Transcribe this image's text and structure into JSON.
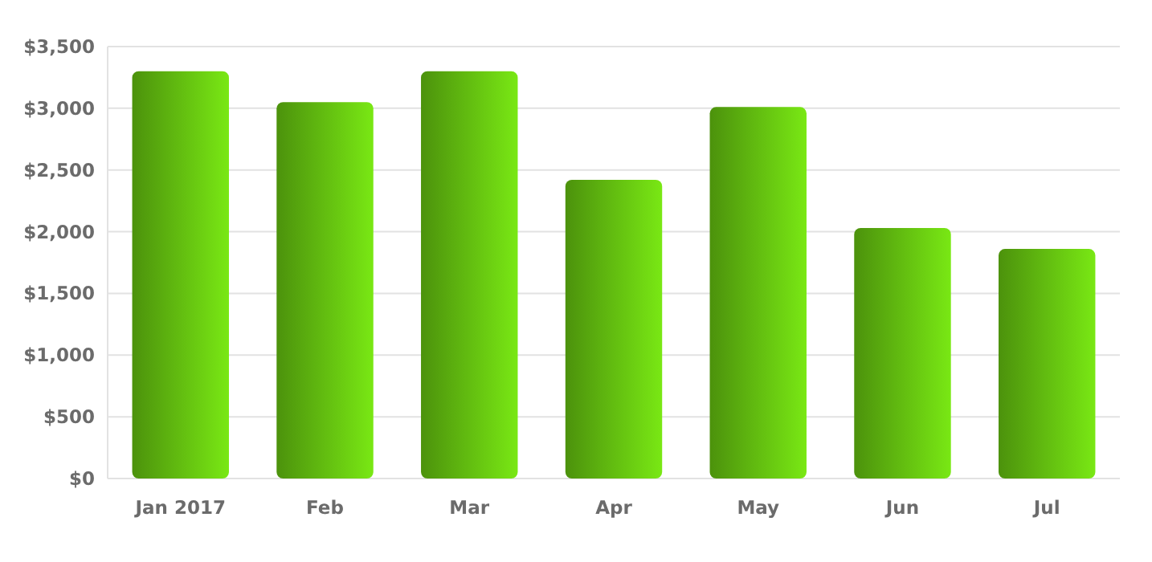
{
  "chart_data": {
    "type": "bar",
    "categories": [
      "Jan 2017",
      "Feb",
      "Mar",
      "Apr",
      "May",
      "Jun",
      "Jul"
    ],
    "values": [
      3300,
      3050,
      3300,
      2420,
      3010,
      2030,
      1860
    ],
    "color": "#62bb10",
    "ylim": [
      0,
      3500
    ],
    "yticks": [
      {
        "value": 0,
        "label": "$0"
      },
      {
        "value": 500,
        "label": "$500"
      },
      {
        "value": 1000,
        "label": "$1,000"
      },
      {
        "value": 1500,
        "label": "$1,500"
      },
      {
        "value": 2000,
        "label": "$2,000"
      },
      {
        "value": 2500,
        "label": "$2,500"
      },
      {
        "value": 3000,
        "label": "$3,000"
      },
      {
        "value": 3500,
        "label": "$3,500"
      }
    ],
    "grid": "y"
  }
}
